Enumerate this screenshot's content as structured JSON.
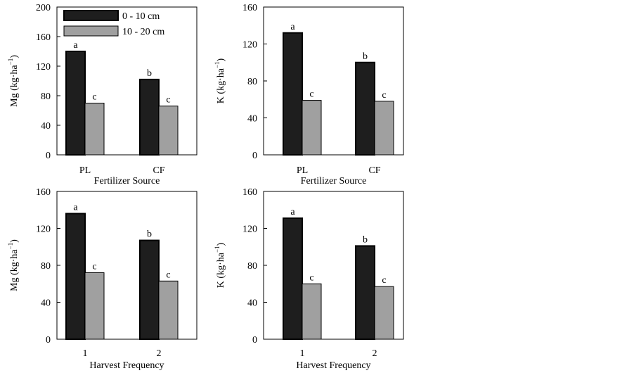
{
  "colors": {
    "series_dark": "#1e1e1e",
    "series_light": "#a0a0a0",
    "axis": "#000000",
    "background": "#ffffff"
  },
  "legend": {
    "items": [
      "0 - 10 cm",
      "10 - 20 cm"
    ]
  },
  "chart_data": [
    {
      "type": "bar",
      "panel": "top-left",
      "xlabel": "Fertilizer Source",
      "ylabel": "Mg (kg·ha",
      "ylabel_sup": "−1",
      "ylabel_close": ")",
      "categories": [
        "PL",
        "CF"
      ],
      "ylim": [
        0,
        200
      ],
      "yticks": [
        0,
        40,
        80,
        120,
        160,
        200
      ],
      "legend_position": "top-left",
      "series": [
        {
          "name": "0 - 10 cm",
          "values": [
            140,
            102
          ],
          "labels": [
            "a",
            "b"
          ]
        },
        {
          "name": "10 - 20 cm",
          "values": [
            70,
            66
          ],
          "labels": [
            "c",
            "c"
          ]
        }
      ]
    },
    {
      "type": "bar",
      "panel": "top-right",
      "xlabel": "Fertilizer Source",
      "ylabel": "K (kg·ha",
      "ylabel_sup": "−1",
      "ylabel_close": ")",
      "categories": [
        "PL",
        "CF"
      ],
      "ylim": [
        0,
        160
      ],
      "yticks": [
        0,
        40,
        80,
        120,
        160
      ],
      "series": [
        {
          "name": "0 - 10 cm",
          "values": [
            132,
            100
          ],
          "labels": [
            "a",
            "b"
          ]
        },
        {
          "name": "10 - 20 cm",
          "values": [
            59,
            58
          ],
          "labels": [
            "c",
            "c"
          ]
        }
      ]
    },
    {
      "type": "bar",
      "panel": "bottom-left",
      "xlabel": "Harvest Frequency",
      "ylabel": "Mg (kg·ha",
      "ylabel_sup": "−1",
      "ylabel_close": ")",
      "categories": [
        "1",
        "2"
      ],
      "ylim": [
        0,
        160
      ],
      "yticks": [
        0,
        40,
        80,
        120,
        160
      ],
      "series": [
        {
          "name": "0 - 10 cm",
          "values": [
            136,
            107
          ],
          "labels": [
            "a",
            "b"
          ]
        },
        {
          "name": "10 - 20 cm",
          "values": [
            72,
            63
          ],
          "labels": [
            "c",
            "c"
          ]
        }
      ]
    },
    {
      "type": "bar",
      "panel": "bottom-right",
      "xlabel": "Harvest Frequency",
      "ylabel": "K (kg·ha",
      "ylabel_sup": "−1",
      "ylabel_close": ")",
      "categories": [
        "1",
        "2"
      ],
      "ylim": [
        0,
        160
      ],
      "yticks": [
        0,
        40,
        80,
        120,
        160
      ],
      "series": [
        {
          "name": "0 - 10 cm",
          "values": [
            131,
            101
          ],
          "labels": [
            "a",
            "b"
          ]
        },
        {
          "name": "10 - 20 cm",
          "values": [
            60,
            57
          ],
          "labels": [
            "c",
            "c"
          ]
        }
      ]
    }
  ]
}
